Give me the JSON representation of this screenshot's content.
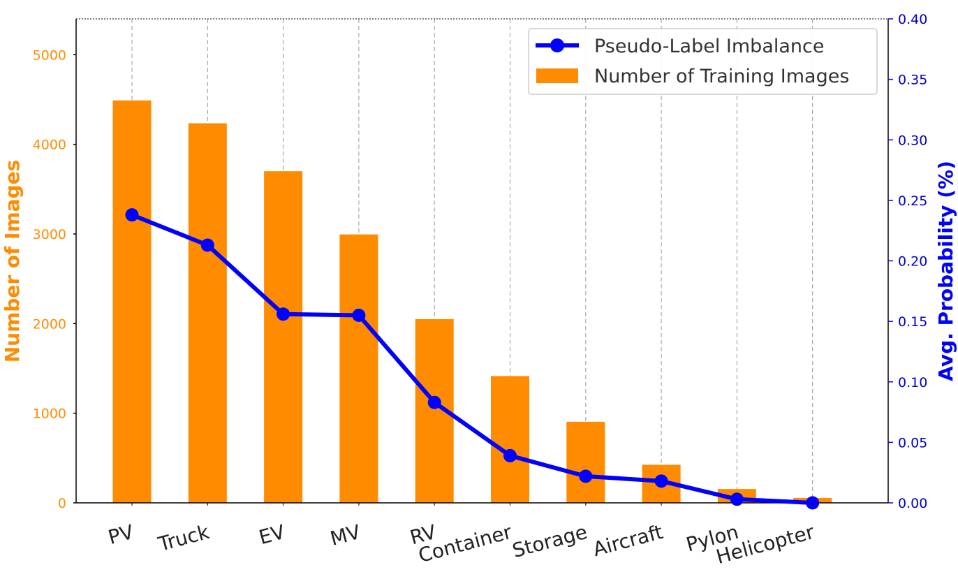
{
  "chart_data": {
    "type": "bar+line",
    "categories": [
      "PV",
      "Truck",
      "EV",
      "MV",
      "RV",
      "Container",
      "Storage",
      "Aircraft",
      "Pylon",
      "Helicopter"
    ],
    "series": [
      {
        "name": "Number of Training Images",
        "type": "bar",
        "axis": "left",
        "color": "#ff8c00",
        "values": [
          4490,
          4235,
          3700,
          2995,
          2050,
          1415,
          905,
          425,
          155,
          55
        ]
      },
      {
        "name": "Pseudo-Label Imbalance",
        "type": "line",
        "axis": "right",
        "color": "#0000ff",
        "values": [
          0.238,
          0.213,
          0.156,
          0.155,
          0.083,
          0.039,
          0.022,
          0.018,
          0.003,
          0.0
        ]
      }
    ],
    "ylabel_left": "Number of Images",
    "ylabel_right": "Avg. Probability (%)",
    "ylim_left": [
      0,
      5400
    ],
    "ylim_right": [
      0.0,
      0.4
    ],
    "yticks_left": [
      0,
      1000,
      2000,
      3000,
      4000,
      5000
    ],
    "yticks_right": [
      0.0,
      0.05,
      0.1,
      0.15,
      0.2,
      0.25,
      0.3,
      0.35,
      0.4
    ],
    "ytick_labels_right": [
      "0.00",
      "0.05",
      "0.10",
      "0.15",
      "0.20",
      "0.25",
      "0.30",
      "0.35",
      "0.40"
    ],
    "left_axis_color": "#ff8c00",
    "right_axis_color": "#0000cd",
    "grid": "vertical dashed",
    "legend_position": "top-right",
    "legend": [
      "Pseudo-Label Imbalance",
      "Number of Training Images"
    ]
  }
}
